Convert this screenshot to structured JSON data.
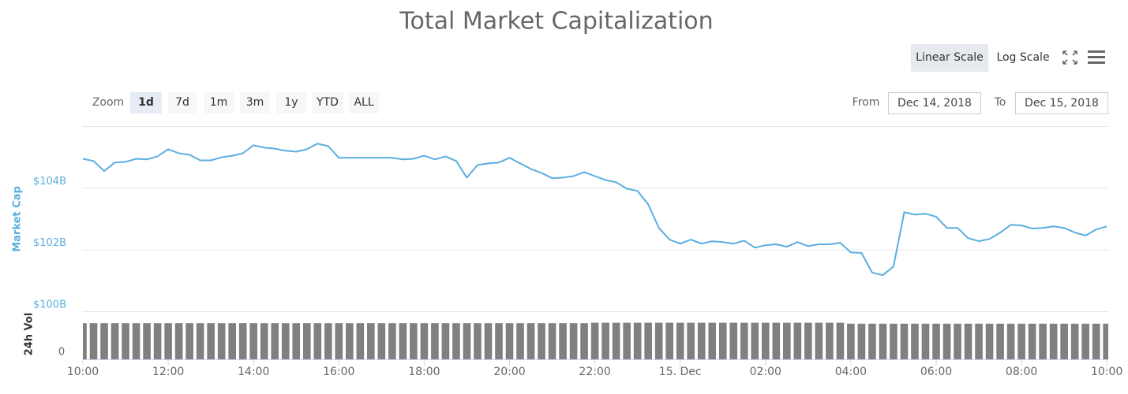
{
  "chart_data": {
    "type": "line",
    "title": "Total Market Capitalization",
    "scale_buttons": [
      "Linear Scale",
      "Log Scale"
    ],
    "zoom_label": "Zoom",
    "zoom_buttons": [
      "1d",
      "7d",
      "1m",
      "3m",
      "1y",
      "YTD",
      "ALL"
    ],
    "range": {
      "from_label": "From",
      "from": "Dec 14, 2018",
      "to_label": "To",
      "to": "Dec 15, 2018"
    },
    "ylabel": "Market Cap",
    "ylim": [
      100,
      106
    ],
    "yticks": [
      {
        "value": 100,
        "label": "$100B"
      },
      {
        "value": 102,
        "label": "$102B"
      },
      {
        "value": 104,
        "label": "$104B"
      }
    ],
    "grid": true,
    "xlim": [
      "2018-12-14T10:00",
      "2018-12-15T10:02"
    ],
    "xticks": [
      {
        "value": "2018-12-14T10:00",
        "label": "10:00"
      },
      {
        "value": "2018-12-14T12:00",
        "label": "12:00"
      },
      {
        "value": "2018-12-14T14:00",
        "label": "14:00"
      },
      {
        "value": "2018-12-14T16:00",
        "label": "16:00"
      },
      {
        "value": "2018-12-14T18:00",
        "label": "18:00"
      },
      {
        "value": "2018-12-14T20:00",
        "label": "20:00"
      },
      {
        "value": "2018-12-14T22:00",
        "label": "22:00"
      },
      {
        "value": "2018-12-15T00:00",
        "label": "15. Dec"
      },
      {
        "value": "2018-12-15T02:00",
        "label": "02:00"
      },
      {
        "value": "2018-12-15T04:00",
        "label": "04:00"
      },
      {
        "value": "2018-12-15T06:00",
        "label": "06:00"
      },
      {
        "value": "2018-12-15T08:00",
        "label": "08:00"
      },
      {
        "value": "2018-12-15T10:00",
        "label": "10:00"
      }
    ],
    "x": [
      "2018-12-14T10:00",
      "2018-12-14T10:15",
      "2018-12-14T10:30",
      "2018-12-14T10:45",
      "2018-12-14T11:00",
      "2018-12-14T11:15",
      "2018-12-14T11:30",
      "2018-12-14T11:45",
      "2018-12-14T12:00",
      "2018-12-14T12:15",
      "2018-12-14T12:30",
      "2018-12-14T12:45",
      "2018-12-14T13:00",
      "2018-12-14T13:15",
      "2018-12-14T13:30",
      "2018-12-14T13:45",
      "2018-12-14T14:00",
      "2018-12-14T14:15",
      "2018-12-14T14:30",
      "2018-12-14T14:45",
      "2018-12-14T15:00",
      "2018-12-14T15:15",
      "2018-12-14T15:30",
      "2018-12-14T15:45",
      "2018-12-14T16:00",
      "2018-12-14T16:15",
      "2018-12-14T16:30",
      "2018-12-14T16:45",
      "2018-12-14T17:00",
      "2018-12-14T17:15",
      "2018-12-14T17:30",
      "2018-12-14T17:45",
      "2018-12-14T18:00",
      "2018-12-14T18:15",
      "2018-12-14T18:30",
      "2018-12-14T18:45",
      "2018-12-14T19:00",
      "2018-12-14T19:15",
      "2018-12-14T19:30",
      "2018-12-14T19:45",
      "2018-12-14T20:00",
      "2018-12-14T20:15",
      "2018-12-14T20:30",
      "2018-12-14T20:45",
      "2018-12-14T21:00",
      "2018-12-14T21:15",
      "2018-12-14T21:30",
      "2018-12-14T21:45",
      "2018-12-14T22:00",
      "2018-12-14T22:15",
      "2018-12-14T22:30",
      "2018-12-14T22:45",
      "2018-12-14T23:00",
      "2018-12-14T23:15",
      "2018-12-14T23:30",
      "2018-12-14T23:45",
      "2018-12-15T00:00",
      "2018-12-15T00:15",
      "2018-12-15T00:30",
      "2018-12-15T00:45",
      "2018-12-15T01:00",
      "2018-12-15T01:15",
      "2018-12-15T01:30",
      "2018-12-15T01:45",
      "2018-12-15T02:00",
      "2018-12-15T02:15",
      "2018-12-15T02:30",
      "2018-12-15T02:45",
      "2018-12-15T03:00",
      "2018-12-15T03:15",
      "2018-12-15T03:30",
      "2018-12-15T03:45",
      "2018-12-15T04:00",
      "2018-12-15T04:15",
      "2018-12-15T04:30",
      "2018-12-15T04:45",
      "2018-12-15T05:00",
      "2018-12-15T05:15",
      "2018-12-15T05:30",
      "2018-12-15T05:45",
      "2018-12-15T06:00",
      "2018-12-15T06:15",
      "2018-12-15T06:30",
      "2018-12-15T06:45",
      "2018-12-15T07:00",
      "2018-12-15T07:15",
      "2018-12-15T07:30",
      "2018-12-15T07:45",
      "2018-12-15T08:00",
      "2018-12-15T08:15",
      "2018-12-15T08:30",
      "2018-12-15T08:45",
      "2018-12-15T09:00",
      "2018-12-15T09:15",
      "2018-12-15T09:30",
      "2018-12-15T09:45",
      "2018-12-15T10:00"
    ],
    "series": [
      {
        "color": "#5aaee0",
        "values": [
          104.94,
          104.87,
          104.54,
          104.82,
          104.84,
          104.94,
          104.92,
          105.02,
          105.25,
          105.12,
          105.07,
          104.89,
          104.89,
          104.99,
          105.04,
          105.12,
          105.38,
          105.3,
          105.27,
          105.2,
          105.17,
          105.25,
          105.43,
          105.35,
          104.97,
          104.97,
          104.97,
          104.97,
          104.97,
          104.97,
          104.92,
          104.94,
          105.04,
          104.92,
          105.02,
          104.87,
          104.33,
          104.74,
          104.79,
          104.82,
          104.97,
          104.79,
          104.61,
          104.48,
          104.31,
          104.33,
          104.38,
          104.51,
          104.38,
          104.25,
          104.18,
          103.97,
          103.9,
          103.46,
          102.7,
          102.32,
          102.19,
          102.32,
          102.19,
          102.27,
          102.24,
          102.19,
          102.29,
          102.06,
          102.14,
          102.17,
          102.09,
          102.24,
          102.11,
          102.17,
          102.17,
          102.22,
          101.91,
          101.89,
          101.25,
          101.17,
          101.45,
          103.21,
          103.13,
          103.16,
          103.06,
          102.7,
          102.7,
          102.37,
          102.27,
          102.34,
          102.55,
          102.8,
          102.78,
          102.68,
          102.7,
          102.75,
          102.7,
          102.55,
          102.45,
          102.65,
          102.75
        ]
      }
    ],
    "volume": {
      "ylabel": "24h Vol",
      "color": "#808080",
      "ylim": [
        0,
        20
      ],
      "yticks": [
        0
      ],
      "values": [
        15.8,
        15.8,
        15.8,
        15.8,
        15.8,
        15.8,
        15.8,
        15.8,
        15.8,
        15.8,
        15.8,
        15.8,
        15.8,
        15.8,
        15.8,
        15.8,
        15.8,
        15.8,
        15.8,
        15.8,
        15.8,
        15.8,
        15.8,
        15.8,
        15.8,
        15.8,
        15.8,
        15.8,
        15.8,
        15.8,
        15.8,
        15.8,
        15.8,
        15.8,
        15.8,
        15.8,
        15.8,
        15.8,
        15.8,
        15.8,
        15.8,
        15.8,
        15.8,
        15.8,
        15.8,
        15.8,
        15.8,
        15.8,
        16.0,
        16.0,
        16.0,
        16.0,
        16.0,
        16.0,
        16.0,
        16.0,
        16.0,
        16.0,
        16.0,
        16.0,
        16.0,
        16.0,
        16.0,
        16.0,
        16.0,
        16.0,
        16.0,
        16.0,
        16.0,
        16.0,
        16.0,
        16.0,
        15.6,
        15.6,
        15.6,
        15.6,
        15.6,
        15.6,
        15.6,
        15.6,
        15.6,
        15.6,
        15.6,
        15.6,
        15.6,
        15.6,
        15.6,
        15.6,
        15.6,
        15.6,
        15.6,
        15.6,
        15.6,
        15.6,
        15.6,
        15.6,
        15.6
      ]
    }
  }
}
